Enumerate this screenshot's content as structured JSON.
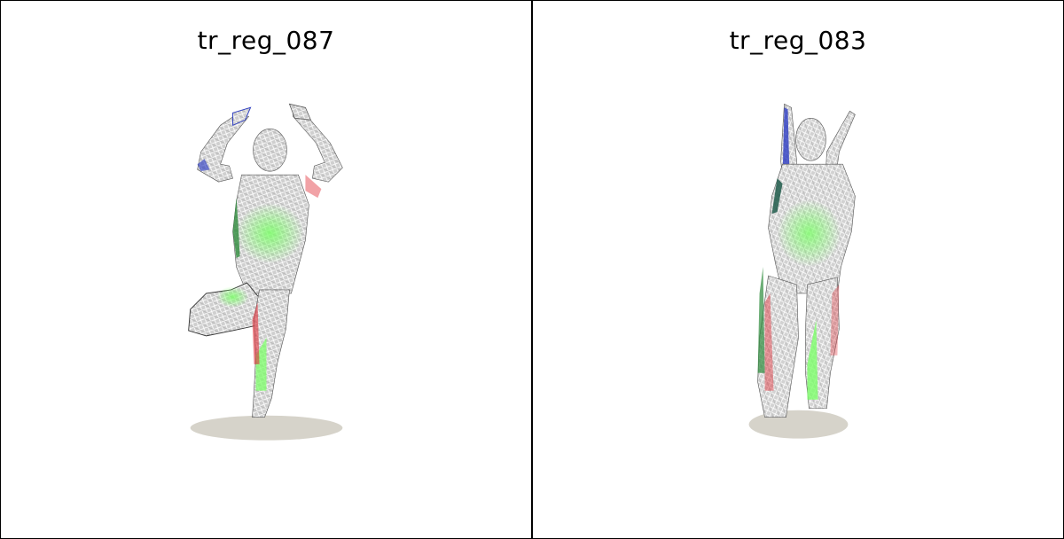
{
  "panels": [
    {
      "title": "tr_reg_087"
    },
    {
      "title": "tr_reg_083"
    }
  ],
  "colors": {
    "background": "#ffffff",
    "border": "#000000",
    "mesh_wire": "#ffffff",
    "mesh_fill": "#d8d8d8",
    "shadow": "#d6d3ca",
    "error_green": "#7dff6a",
    "error_red": "#e0303a",
    "error_blue": "#2030c0"
  }
}
